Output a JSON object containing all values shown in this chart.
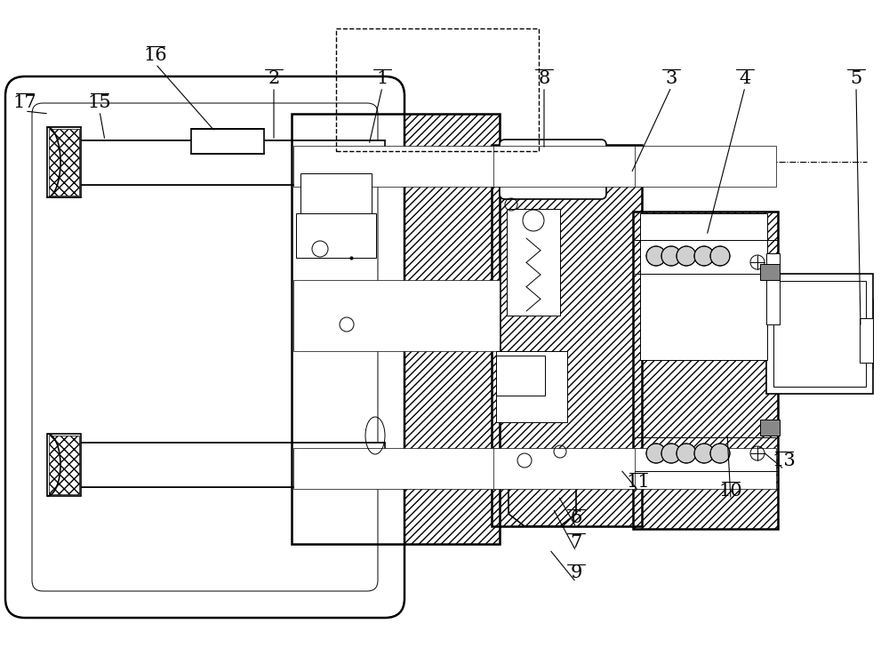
{
  "title": "",
  "bg_color": "#ffffff",
  "line_color": "#000000",
  "figsize": [
    10.0,
    7.29
  ],
  "dpi": 100,
  "labels_data": [
    [
      "1",
      430,
      88,
      415,
      163
    ],
    [
      "2",
      308,
      88,
      308,
      158
    ],
    [
      "3",
      755,
      88,
      710,
      195
    ],
    [
      "4",
      838,
      88,
      795,
      265
    ],
    [
      "5",
      963,
      88,
      968,
      368
    ],
    [
      "6",
      648,
      583,
      628,
      558
    ],
    [
      "7",
      648,
      610,
      622,
      572
    ],
    [
      "8",
      612,
      88,
      612,
      168
    ],
    [
      "9",
      648,
      645,
      618,
      618
    ],
    [
      "10",
      822,
      552,
      818,
      488
    ],
    [
      "11",
      718,
      542,
      698,
      528
    ],
    [
      "13",
      882,
      518,
      858,
      508
    ],
    [
      "15",
      112,
      115,
      118,
      158
    ],
    [
      "16",
      175,
      62,
      242,
      148
    ],
    [
      "17",
      28,
      115,
      55,
      128
    ]
  ]
}
